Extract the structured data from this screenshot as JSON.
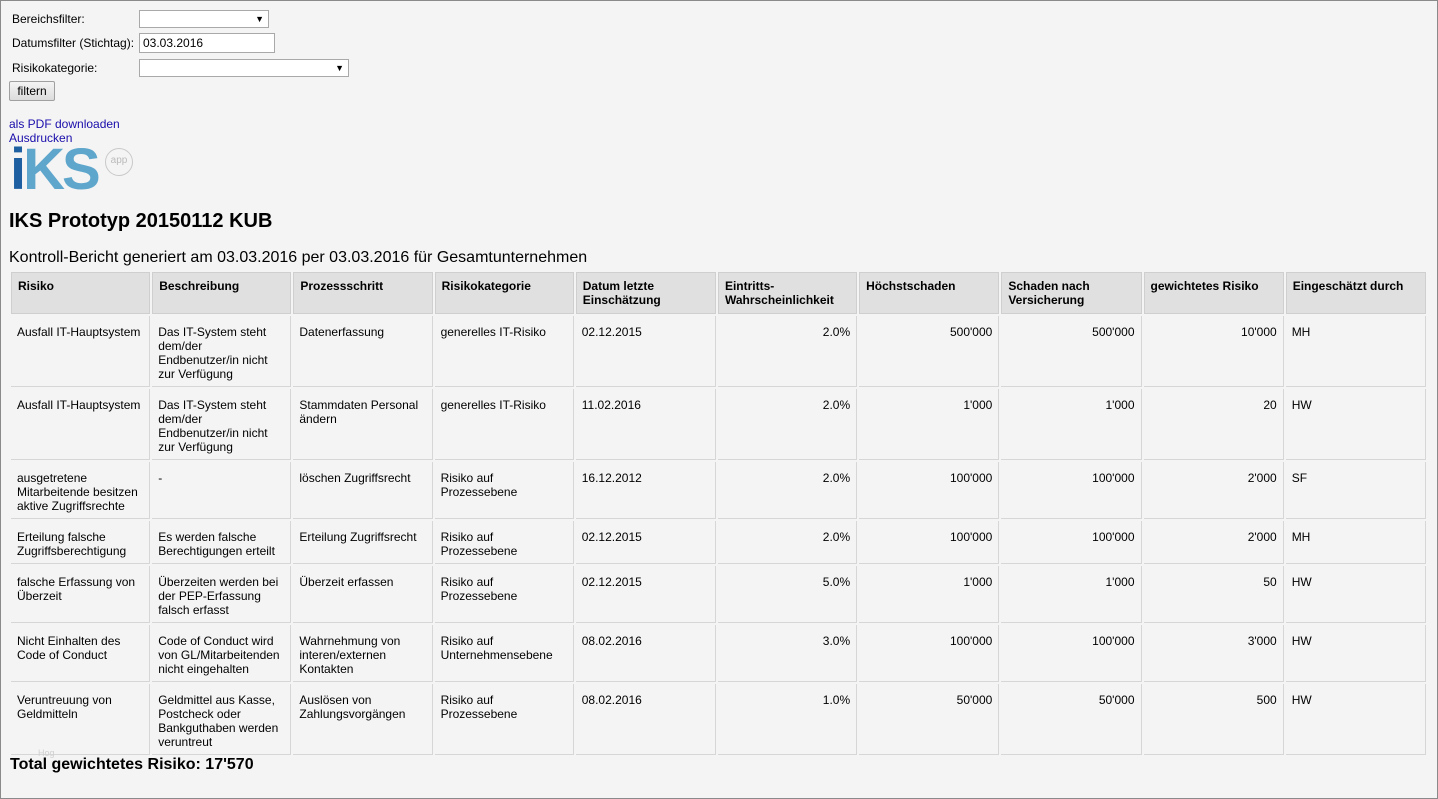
{
  "filters": {
    "area_label": "Bereichsfilter:",
    "area_value": "",
    "date_label": "Datumsfilter (Stichtag):",
    "date_value": "03.03.2016",
    "category_label": "Risikokategorie:",
    "category_value": "",
    "filter_button": "filtern"
  },
  "links": {
    "pdf": "als PDF downloaden",
    "print": "Ausdrucken"
  },
  "logo": {
    "text_i": "i",
    "text_ks": "KS",
    "badge": "app"
  },
  "report": {
    "title": "IKS Prototyp 20150112 KUB",
    "subtitle": "Kontroll-Bericht generiert am 03.03.2016 per 03.03.2016 für Gesamtunternehmen",
    "columns": [
      "Risiko",
      "Beschreibung",
      "Prozessschritt",
      "Risikokategorie",
      "Datum letzte Einschätzung",
      "Eintritts-Wahrscheinlichkeit",
      "Höchstschaden",
      "Schaden nach Versicherung",
      "gewichtetes Risiko",
      "Eingeschätzt durch"
    ],
    "rows": [
      [
        "Ausfall IT-Hauptsystem",
        "Das IT-System steht dem/der Endbenutzer/in nicht zur Verfügung",
        "Datenerfassung",
        "generelles IT-Risiko",
        "02.12.2015",
        "2.0%",
        "500'000",
        "500'000",
        "10'000",
        "MH"
      ],
      [
        "Ausfall IT-Hauptsystem",
        "Das IT-System steht dem/der Endbenutzer/in nicht zur Verfügung",
        "Stammdaten Personal ändern",
        "generelles IT-Risiko",
        "11.02.2016",
        "2.0%",
        "1'000",
        "1'000",
        "20",
        "HW"
      ],
      [
        "ausgetretene Mitarbeitende besitzen aktive Zugriffsrechte",
        "-",
        "löschen Zugriffsrecht",
        "Risiko auf Prozessebene",
        "16.12.2012",
        "2.0%",
        "100'000",
        "100'000",
        "2'000",
        "SF"
      ],
      [
        "Erteilung falsche Zugriffsberechtigung",
        "Es werden falsche Berechtigungen erteilt",
        "Erteilung Zugriffsrecht",
        "Risiko auf Prozessebene",
        "02.12.2015",
        "2.0%",
        "100'000",
        "100'000",
        "2'000",
        "MH"
      ],
      [
        "falsche Erfassung von Überzeit",
        "Überzeiten werden bei der PEP-Erfassung falsch erfasst",
        "Überzeit erfassen",
        "Risiko auf Prozessebene",
        "02.12.2015",
        "5.0%",
        "1'000",
        "1'000",
        "50",
        "HW"
      ],
      [
        "Nicht Einhalten des Code of Conduct",
        "Code of Conduct wird von GL/Mitarbeitenden nicht eingehalten",
        "Wahrnehmung von interen/externen Kontakten",
        "Risiko auf Unternehmensebene",
        "08.02.2016",
        "3.0%",
        "100'000",
        "100'000",
        "3'000",
        "HW"
      ],
      [
        "Veruntreuung von Geldmitteln",
        "Geldmittel aus Kasse, Postcheck oder Bankguthaben werden veruntreut",
        "Auslösen von Zahlungsvorgängen",
        "Risiko auf Prozessebene",
        "08.02.2016",
        "1.0%",
        "50'000",
        "50'000",
        "500",
        "HW"
      ]
    ],
    "total": "Total gewichtetes Risiko: 17'570",
    "watermark": "Hog"
  }
}
